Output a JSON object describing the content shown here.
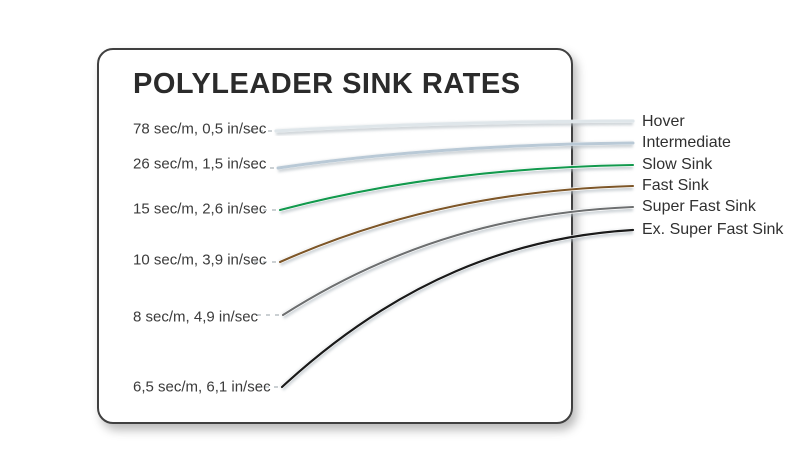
{
  "page": {
    "background_color": "#ffffff",
    "card_border_color": "#404040"
  },
  "chart_data": {
    "type": "line",
    "title": "POLYLEADER SINK RATES",
    "legend_position": "right",
    "xlabel": "",
    "ylabel": "",
    "grid": false,
    "series": [
      {
        "name": "Hover",
        "rate_label": "78 sec/m, 0,5 in/sec",
        "sec_per_m": 78,
        "in_per_sec": 0.5,
        "color": "#dfe6ea"
      },
      {
        "name": "Intermediate",
        "rate_label": "26 sec/m, 1,5 in/sec",
        "sec_per_m": 26,
        "in_per_sec": 1.5,
        "color": "#b9c9d6"
      },
      {
        "name": "Slow Sink",
        "rate_label": "15 sec/m, 2,6 in/sec",
        "sec_per_m": 15,
        "in_per_sec": 2.6,
        "color": "#12994d"
      },
      {
        "name": "Fast Sink",
        "rate_label": "10 sec/m, 3,9 in/sec",
        "sec_per_m": 10,
        "in_per_sec": 3.9,
        "color": "#7d5628"
      },
      {
        "name": "Super Fast Sink",
        "rate_label": "8 sec/m, 4,9 in/sec",
        "sec_per_m": 8,
        "in_per_sec": 4.9,
        "color": "#6d6f70"
      },
      {
        "name": "Ex. Super Fast Sink",
        "rate_label": "6,5 sec/m, 6,1 in/sec",
        "sec_per_m": 6.5,
        "in_per_sec": 6.1,
        "color": "#1a1a1a"
      }
    ]
  }
}
